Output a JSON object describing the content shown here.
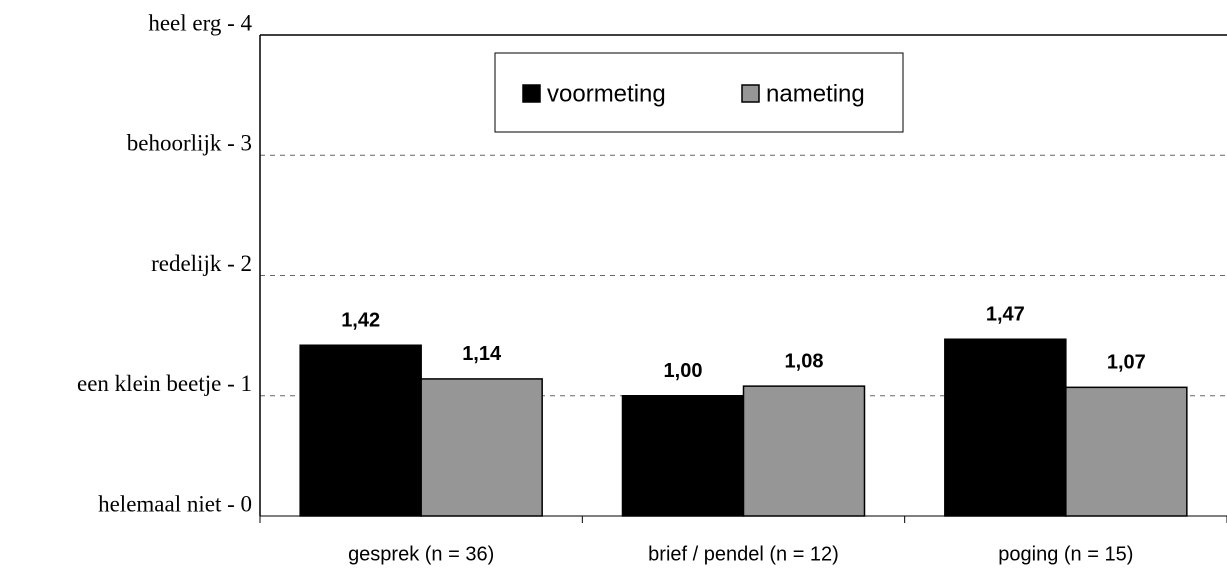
{
  "chart_data": {
    "type": "bar",
    "categories": [
      "gesprek (n = 36)",
      "brief / pendel (n = 12)",
      "poging (n = 15)"
    ],
    "series": [
      {
        "name": "voormeting",
        "color": "#000000",
        "values": [
          1.42,
          1.0,
          1.47
        ],
        "value_labels": [
          "1,42",
          "1,00",
          "1,47"
        ]
      },
      {
        "name": "nameting",
        "color": "#969696",
        "values": [
          1.14,
          1.08,
          1.07
        ],
        "value_labels": [
          "1,14",
          "1,08",
          "1,07"
        ]
      }
    ],
    "ylim": [
      0,
      4
    ],
    "yticks": [
      {
        "value": 0,
        "label": "helemaal niet - 0"
      },
      {
        "value": 1,
        "label": "een klein beetje - 1"
      },
      {
        "value": 2,
        "label": "redelijk - 2"
      },
      {
        "value": 3,
        "label": "behoorlijk - 3"
      },
      {
        "value": 4,
        "label": "heel erg - 4"
      }
    ],
    "grid": true,
    "legend": "top"
  }
}
